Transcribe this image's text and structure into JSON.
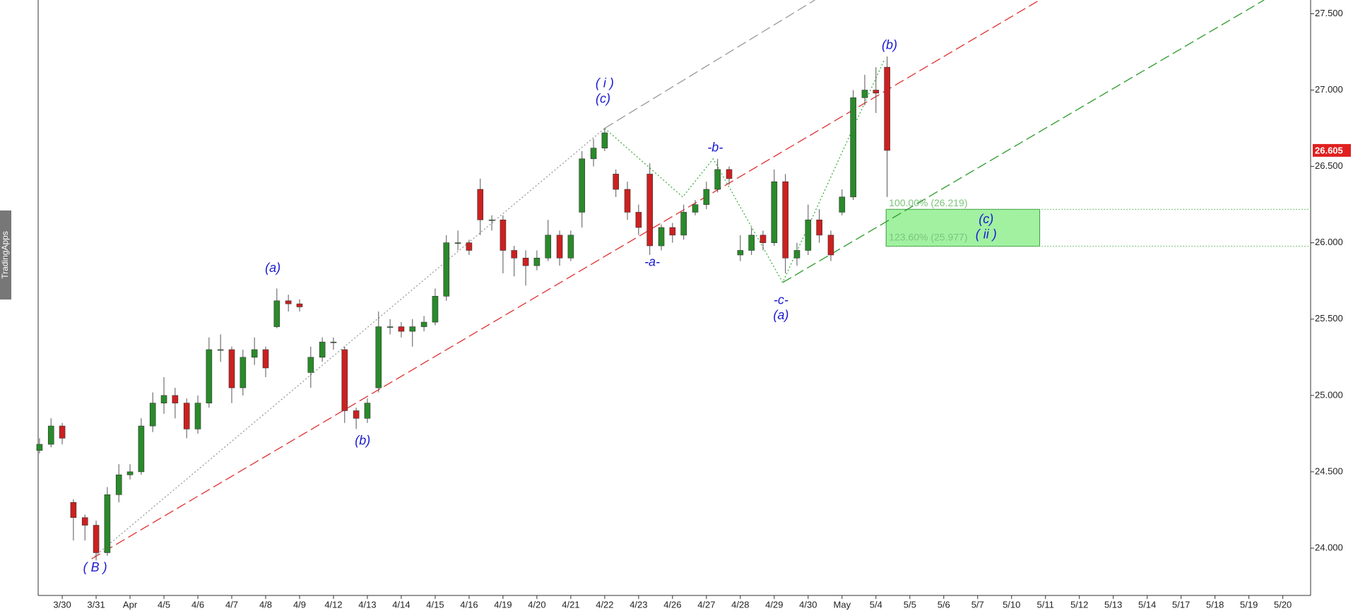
{
  "chart_data": {
    "type": "candlestick",
    "watermark": "TradingApps",
    "up_color": "#2a8a2a",
    "down_color": "#cc2020",
    "x": [
      -0.67,
      -0.33,
      0,
      0.33,
      0.67,
      1,
      1.33,
      1.67,
      2,
      2.33,
      2.67,
      3,
      3.33,
      3.67,
      4,
      4.33,
      4.67,
      5,
      5.33,
      5.67,
      6,
      6.33,
      6.67,
      7,
      7.33,
      7.67,
      8,
      8.33,
      8.67,
      9,
      9.33,
      9.67,
      10,
      10.33,
      10.67,
      11,
      11.33,
      11.67,
      12,
      12.33,
      12.67,
      13,
      13.33,
      13.67,
      14,
      14.33,
      14.67,
      15,
      15.33,
      15.67,
      16,
      16.33,
      16.67,
      17,
      17.33,
      17.67,
      18,
      18.33,
      18.67,
      19,
      19.33,
      19.67,
      20,
      20.33,
      20.67,
      21,
      21.33,
      21.67,
      22,
      22.33,
      22.67,
      23,
      23.33,
      23.67,
      24,
      24.33
    ],
    "open": [
      24.64,
      24.68,
      24.8,
      24.3,
      24.2,
      24.15,
      23.97,
      24.35,
      24.48,
      24.5,
      24.8,
      24.95,
      25.0,
      24.95,
      24.78,
      24.95,
      25.3,
      25.3,
      25.05,
      25.25,
      25.3,
      25.45,
      25.62,
      25.6,
      25.15,
      25.25,
      25.35,
      25.3,
      24.9,
      24.85,
      25.05,
      25.45,
      25.45,
      25.42,
      25.45,
      25.48,
      25.65,
      26.0,
      26.0,
      26.35,
      26.15,
      26.15,
      25.95,
      25.9,
      25.85,
      25.9,
      26.05,
      25.9,
      26.2,
      26.55,
      26.62,
      26.45,
      26.35,
      26.2,
      26.45,
      25.98,
      26.1,
      26.05,
      26.2,
      26.25,
      26.35,
      26.48,
      25.92,
      25.95,
      26.05,
      26.0,
      26.4,
      25.9,
      25.95,
      26.15,
      26.05,
      26.2,
      26.3,
      26.95,
      27.0,
      27.15
    ],
    "high": [
      24.72,
      24.85,
      24.82,
      24.32,
      24.22,
      24.18,
      24.4,
      24.55,
      24.55,
      24.85,
      25.02,
      25.12,
      25.05,
      24.98,
      25.0,
      25.38,
      25.4,
      25.32,
      25.3,
      25.38,
      25.32,
      25.7,
      25.66,
      25.63,
      25.32,
      25.38,
      25.38,
      25.32,
      24.92,
      24.98,
      25.55,
      25.5,
      25.48,
      25.5,
      25.52,
      25.7,
      26.05,
      26.08,
      26.02,
      26.42,
      26.18,
      26.18,
      25.98,
      25.95,
      25.95,
      26.15,
      26.08,
      26.08,
      26.6,
      26.68,
      26.75,
      26.48,
      26.4,
      26.25,
      26.52,
      26.12,
      26.13,
      26.25,
      26.28,
      26.4,
      26.55,
      26.5,
      26.05,
      26.1,
      26.08,
      26.48,
      26.45,
      26.0,
      26.25,
      26.22,
      26.08,
      26.35,
      27.0,
      27.1,
      27.15,
      27.22
    ],
    "low": [
      24.62,
      24.66,
      24.68,
      24.05,
      24.05,
      23.92,
      23.95,
      24.3,
      24.45,
      24.48,
      24.76,
      24.88,
      24.85,
      24.72,
      24.75,
      24.92,
      25.22,
      24.95,
      25.0,
      25.2,
      25.12,
      25.44,
      25.55,
      25.55,
      25.05,
      25.22,
      25.3,
      24.82,
      24.78,
      24.82,
      25.02,
      25.4,
      25.38,
      25.32,
      25.42,
      25.46,
      25.62,
      25.95,
      25.92,
      26.05,
      26.08,
      25.8,
      25.78,
      25.72,
      25.82,
      25.88,
      25.85,
      25.88,
      26.1,
      26.5,
      26.6,
      26.3,
      26.15,
      26.05,
      25.92,
      25.95,
      26.0,
      26.02,
      26.18,
      26.22,
      26.33,
      26.38,
      25.88,
      25.92,
      25.95,
      25.98,
      25.8,
      25.85,
      25.92,
      26.0,
      25.88,
      26.18,
      26.28,
      26.9,
      26.85,
      26.3
    ],
    "close": [
      24.68,
      24.8,
      24.72,
      24.2,
      24.15,
      23.97,
      24.35,
      24.48,
      24.5,
      24.8,
      24.95,
      25.0,
      24.95,
      24.78,
      24.95,
      25.3,
      25.3,
      25.05,
      25.25,
      25.3,
      25.18,
      25.62,
      25.6,
      25.58,
      25.25,
      25.35,
      25.35,
      24.9,
      24.85,
      24.95,
      25.45,
      25.45,
      25.42,
      25.45,
      25.48,
      25.65,
      26.0,
      26.0,
      25.95,
      26.15,
      26.15,
      25.95,
      25.9,
      25.85,
      25.9,
      26.05,
      25.9,
      26.05,
      26.55,
      26.62,
      26.72,
      26.35,
      26.2,
      26.1,
      25.98,
      26.1,
      26.05,
      26.2,
      26.25,
      26.35,
      26.48,
      26.42,
      25.95,
      26.05,
      26.0,
      26.4,
      25.9,
      25.95,
      26.15,
      26.05,
      25.92,
      26.3,
      26.95,
      27.0,
      26.98,
      26.605
    ],
    "xlim": [
      -0.71,
      36.82
    ],
    "ylim": [
      23.69,
      27.59
    ],
    "xticks": [
      {
        "value": 0,
        "label": "3/30"
      },
      {
        "value": 1,
        "label": "3/31"
      },
      {
        "value": 2,
        "label": "Apr"
      },
      {
        "value": 3,
        "label": "4/5"
      },
      {
        "value": 4,
        "label": "4/6"
      },
      {
        "value": 5,
        "label": "4/7"
      },
      {
        "value": 6,
        "label": "4/8"
      },
      {
        "value": 7,
        "label": "4/9"
      },
      {
        "value": 8,
        "label": "4/12"
      },
      {
        "value": 9,
        "label": "4/13"
      },
      {
        "value": 10,
        "label": "4/14"
      },
      {
        "value": 11,
        "label": "4/15"
      },
      {
        "value": 12,
        "label": "4/16"
      },
      {
        "value": 13,
        "label": "4/19"
      },
      {
        "value": 14,
        "label": "4/20"
      },
      {
        "value": 15,
        "label": "4/21"
      },
      {
        "value": 16,
        "label": "4/22"
      },
      {
        "value": 17,
        "label": "4/23"
      },
      {
        "value": 18,
        "label": "4/26"
      },
      {
        "value": 19,
        "label": "4/27"
      },
      {
        "value": 20,
        "label": "4/28"
      },
      {
        "value": 21,
        "label": "4/29"
      },
      {
        "value": 22,
        "label": "4/30"
      },
      {
        "value": 23,
        "label": "May"
      },
      {
        "value": 24,
        "label": "5/4"
      },
      {
        "value": 25,
        "label": "5/5"
      },
      {
        "value": 26,
        "label": "5/6"
      },
      {
        "value": 27,
        "label": "5/7"
      },
      {
        "value": 28,
        "label": "5/10"
      },
      {
        "value": 29,
        "label": "5/11"
      },
      {
        "value": 30,
        "label": "5/12"
      },
      {
        "value": 31,
        "label": "5/13"
      },
      {
        "value": 32,
        "label": "5/14"
      },
      {
        "value": 33,
        "label": "5/17"
      },
      {
        "value": 34,
        "label": "5/18"
      },
      {
        "value": 35,
        "label": "5/19"
      },
      {
        "value": 36,
        "label": "5/20"
      }
    ],
    "yticks": [
      {
        "value": 24,
        "label": "24.000"
      },
      {
        "value": 24.5,
        "label": "24.500"
      },
      {
        "value": 25,
        "label": "25.000"
      },
      {
        "value": 25.5,
        "label": "25.500"
      },
      {
        "value": 26,
        "label": "26.000"
      },
      {
        "value": 26.5,
        "label": "26.500"
      },
      {
        "value": 27,
        "label": "27.000"
      },
      {
        "value": 27.5,
        "label": "27.500"
      }
    ],
    "last_price": 26.605,
    "last_price_color": "#e02020",
    "lines": [
      {
        "color": "#999999",
        "dash": "dotted",
        "points": [
          [
            0.87,
            23.93
          ],
          [
            16,
            26.75
          ]
        ]
      },
      {
        "color": "#999999",
        "dash": "dashed",
        "points": [
          [
            16,
            26.75
          ],
          [
            22.2,
            27.59
          ]
        ]
      },
      {
        "color": "#e03030",
        "dash": "dashed",
        "points": [
          [
            0.87,
            23.93
          ],
          [
            28.83,
            27.59
          ]
        ]
      },
      {
        "color": "#2a9a2a",
        "dash": "dashed",
        "points": [
          [
            21.25,
            25.74
          ],
          [
            35.45,
            27.59
          ]
        ]
      },
      {
        "color": "#40b040",
        "dash": "dotted",
        "points": [
          [
            16,
            26.75
          ],
          [
            18.3,
            26.3
          ],
          [
            19.2,
            26.55
          ],
          [
            21.25,
            25.74
          ],
          [
            24.25,
            27.2
          ]
        ]
      }
    ],
    "fib_zone": {
      "x0": 24.3,
      "x1": 28.83,
      "color": "#90ee90",
      "levels": [
        {
          "value": 26.219,
          "label": "100.00% (26.219)"
        },
        {
          "value": 25.977,
          "label": "123.60% (25.977)"
        }
      ]
    },
    "annotations": [
      {
        "text": "( B )",
        "x": 0.97,
        "y": 23.87
      },
      {
        "text": "(a)",
        "x": 6.21,
        "y": 25.83
      },
      {
        "text": "(b)",
        "x": 8.86,
        "y": 24.7
      },
      {
        "text": "( i )",
        "x": 16.0,
        "y": 27.04
      },
      {
        "text": "(c)",
        "x": 15.95,
        "y": 26.94
      },
      {
        "text": "-a-",
        "x": 17.4,
        "y": 25.87
      },
      {
        "text": "-b-",
        "x": 19.26,
        "y": 26.62
      },
      {
        "text": "-c-",
        "x": 21.2,
        "y": 25.62
      },
      {
        "text": "(a)",
        "x": 21.2,
        "y": 25.52
      },
      {
        "text": "(b)",
        "x": 24.4,
        "y": 27.29
      },
      {
        "text": "(c)",
        "x": 27.25,
        "y": 26.15
      },
      {
        "text": "( ii )",
        "x": 27.25,
        "y": 26.05
      }
    ]
  }
}
